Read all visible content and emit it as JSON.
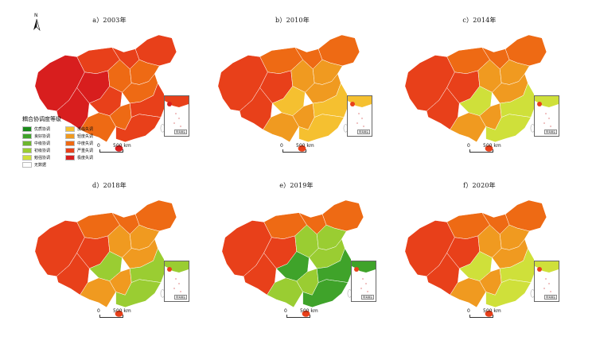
{
  "legend": {
    "title": "耦合协调度等级",
    "items": [
      {
        "label": "优质协调",
        "color": "#1a8a1a"
      },
      {
        "label": "濒临失调",
        "color": "#f5c030"
      },
      {
        "label": "良好协调",
        "color": "#3fa32a"
      },
      {
        "label": "轻度失调",
        "color": "#f09a20"
      },
      {
        "label": "中级协调",
        "color": "#6db52e"
      },
      {
        "label": "中度失调",
        "color": "#ee6a14"
      },
      {
        "label": "初级协调",
        "color": "#9acd32"
      },
      {
        "label": "严重失调",
        "color": "#e8401a"
      },
      {
        "label": "勉强协调",
        "color": "#cfe03a"
      },
      {
        "label": "极度失调",
        "color": "#d81e1e"
      },
      {
        "label": "无数据",
        "color": "#ffffff"
      }
    ]
  },
  "north_label": "N",
  "scale": {
    "zero": "0",
    "max": "500 km"
  },
  "inset_label": "南海诸岛",
  "panels": [
    {
      "title": "a）2003年",
      "palette": [
        "#e8401a",
        "#d81e1e",
        "#ee6a14",
        "#e8401a"
      ]
    },
    {
      "title": "b）2010年",
      "palette": [
        "#ee6a14",
        "#e8401a",
        "#f09a20",
        "#f5c030"
      ]
    },
    {
      "title": "c）2014年",
      "palette": [
        "#ee6a14",
        "#e8401a",
        "#f09a20",
        "#cfe03a"
      ]
    },
    {
      "title": "d）2018年",
      "palette": [
        "#ee6a14",
        "#e8401a",
        "#f09a20",
        "#9acd32"
      ]
    },
    {
      "title": "e）2019年",
      "palette": [
        "#ee6a14",
        "#e8401a",
        "#9acd32",
        "#3fa32a"
      ]
    },
    {
      "title": "f）2020年",
      "palette": [
        "#ee6a14",
        "#e8401a",
        "#f09a20",
        "#cfe03a"
      ]
    }
  ]
}
